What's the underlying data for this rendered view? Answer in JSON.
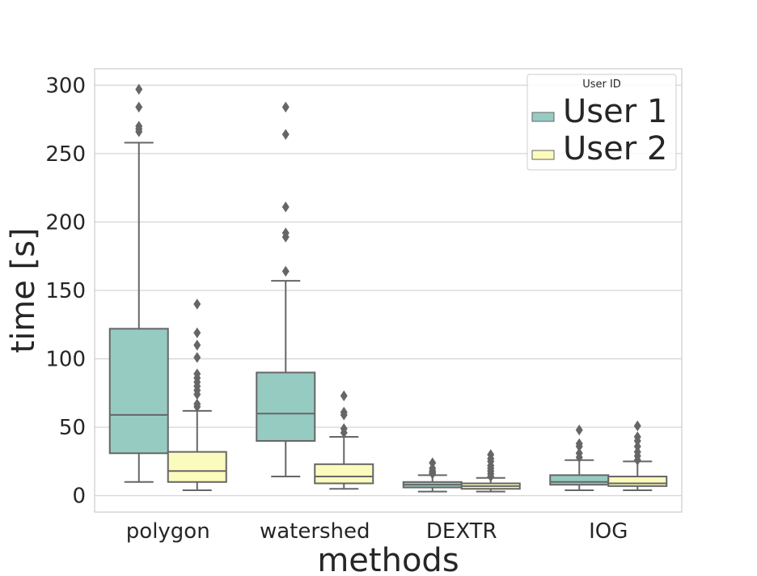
{
  "chart_data": {
    "type": "box",
    "title": "",
    "xlabel": "methods",
    "ylabel": "time [s]",
    "ylim": [
      -12,
      312
    ],
    "yticks": [
      0,
      50,
      100,
      150,
      200,
      250,
      300
    ],
    "grid": "horizontal",
    "legend": {
      "title": "User ID",
      "position": "top-right"
    },
    "categories": [
      "polygon",
      "watershed",
      "DEXTR",
      "IOG"
    ],
    "series": [
      {
        "name": "User 1",
        "color": "#96cbc2",
        "boxes": [
          {
            "min": 10,
            "q1": 31,
            "median": 59,
            "q3": 122,
            "max": 258,
            "outliers": [
              266,
              268,
              270,
              284,
              297
            ]
          },
          {
            "min": 14,
            "q1": 40,
            "median": 60,
            "q3": 90,
            "max": 157,
            "outliers": [
              164,
              189,
              192,
              211,
              264,
              284
            ]
          },
          {
            "min": 3,
            "q1": 6,
            "median": 8,
            "q3": 10,
            "max": 15,
            "outliers": [
              16,
              17,
              18,
              20,
              24
            ]
          },
          {
            "min": 4,
            "q1": 8,
            "median": 10,
            "q3": 15,
            "max": 26,
            "outliers": [
              28,
              31,
              36,
              38,
              48
            ]
          }
        ]
      },
      {
        "name": "User 2",
        "color": "#fbfbbd",
        "boxes": [
          {
            "min": 4,
            "q1": 10,
            "median": 18,
            "q3": 32,
            "max": 62,
            "outliers": [
              65,
              67,
              74,
              77,
              80,
              83,
              86,
              89,
              101,
              110,
              119,
              140
            ]
          },
          {
            "min": 5,
            "q1": 9,
            "median": 14,
            "q3": 23,
            "max": 43,
            "outliers": [
              46,
              49,
              59,
              61,
              73
            ]
          },
          {
            "min": 3,
            "q1": 5,
            "median": 7,
            "q3": 9,
            "max": 13,
            "outliers": [
              14,
              16,
              18,
              20,
              22,
              25,
              27,
              30
            ]
          },
          {
            "min": 4,
            "q1": 7,
            "median": 9,
            "q3": 14,
            "max": 25,
            "outliers": [
              26,
              29,
              32,
              36,
              40,
              43,
              51
            ]
          }
        ]
      }
    ]
  }
}
